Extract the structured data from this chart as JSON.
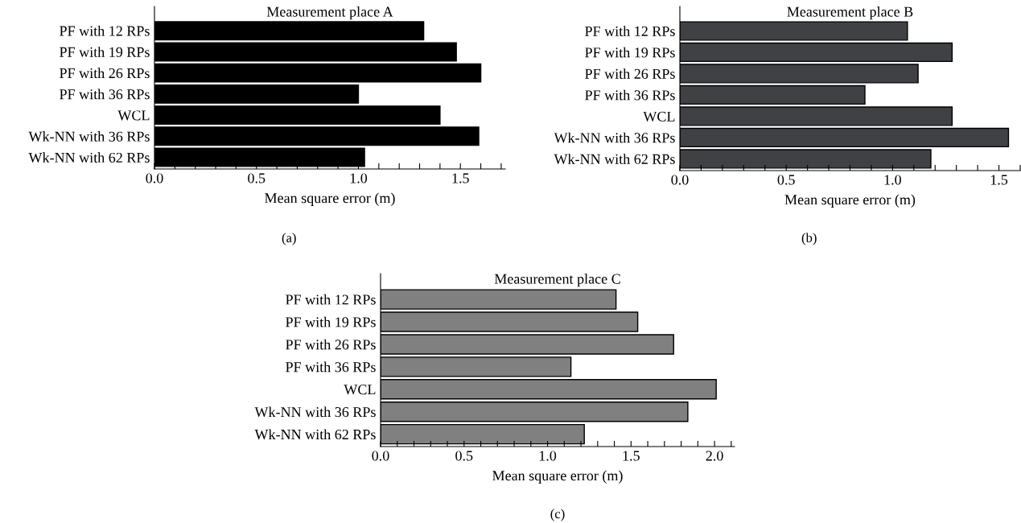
{
  "chart_data": [
    {
      "type": "bar",
      "orientation": "horizontal",
      "title": "Measurement place A",
      "xlabel": "Mean square error (m)",
      "categories": [
        "PF with 12 RPs",
        "PF with 19 RPs",
        "PF with 26 RPs",
        "PF with 36 RPs",
        "WCL",
        "Wk-NN with 36 RPs",
        "Wk-NN with 62 RPs"
      ],
      "values": [
        1.32,
        1.48,
        1.6,
        1.0,
        1.4,
        1.59,
        1.03
      ],
      "color": "#000000",
      "xlim": [
        0,
        1.72
      ],
      "xticks": [
        {
          "value": 0,
          "label": "0.0"
        },
        {
          "value": 0.1,
          "label": null
        },
        {
          "value": 0.2,
          "label": null
        },
        {
          "value": 0.3,
          "label": null
        },
        {
          "value": 0.4,
          "label": null
        },
        {
          "value": 0.5,
          "label": "0.5"
        },
        {
          "value": 0.6,
          "label": null
        },
        {
          "value": 0.7,
          "label": null
        },
        {
          "value": 0.8,
          "label": null
        },
        {
          "value": 0.9,
          "label": null
        },
        {
          "value": 1.0,
          "label": "1.0"
        },
        {
          "value": 1.1,
          "label": null
        },
        {
          "value": 1.2,
          "label": null
        },
        {
          "value": 1.3,
          "label": null
        },
        {
          "value": 1.4,
          "label": null
        },
        {
          "value": 1.5,
          "label": "1.5"
        },
        {
          "value": 1.6,
          "label": null
        },
        {
          "value": 1.7,
          "label": null
        }
      ],
      "grid": false,
      "annotations": [
        "(a)"
      ]
    },
    {
      "type": "bar",
      "orientation": "horizontal",
      "title": "Measurement place B",
      "xlabel": "Mean square error (m)",
      "categories": [
        "PF with 12 RPs",
        "PF with 19 RPs",
        "PF with 26 RPs",
        "PF with 36 RPs",
        "WCL",
        "Wk-NN with 36 RPs",
        "Wk-NN with 62 RPs"
      ],
      "values": [
        1.07,
        1.28,
        1.12,
        0.87,
        1.28,
        1.545,
        1.18
      ],
      "color": "#3f4144",
      "xlim": [
        0,
        1.6
      ],
      "xticks": [
        {
          "value": 0,
          "label": "0.0"
        },
        {
          "value": 0.1,
          "label": null
        },
        {
          "value": 0.2,
          "label": null
        },
        {
          "value": 0.3,
          "label": null
        },
        {
          "value": 0.4,
          "label": null
        },
        {
          "value": 0.5,
          "label": "0.5"
        },
        {
          "value": 0.6,
          "label": null
        },
        {
          "value": 0.7,
          "label": null
        },
        {
          "value": 0.8,
          "label": null
        },
        {
          "value": 0.9,
          "label": null
        },
        {
          "value": 1.0,
          "label": "1.0"
        },
        {
          "value": 1.1,
          "label": null
        },
        {
          "value": 1.2,
          "label": null
        },
        {
          "value": 1.3,
          "label": null
        },
        {
          "value": 1.4,
          "label": null
        },
        {
          "value": 1.5,
          "label": "1.5"
        },
        {
          "value": 1.6,
          "label": null
        }
      ],
      "grid": false,
      "annotations": [
        "(b)"
      ]
    },
    {
      "type": "bar",
      "orientation": "horizontal",
      "title": "Measurement place C",
      "xlabel": "Mean square error (m)",
      "categories": [
        "PF with 12 RPs",
        "PF with 19 RPs",
        "PF with 26 RPs",
        "PF with 36 RPs",
        "WCL",
        "Wk-NN with 36 RPs",
        "Wk-NN with 62 RPs"
      ],
      "values": [
        1.41,
        1.54,
        1.755,
        1.14,
        2.01,
        1.84,
        1.22
      ],
      "color": "#808080",
      "xlim": [
        0,
        2.12
      ],
      "xticks": [
        {
          "value": 0,
          "label": "0.0"
        },
        {
          "value": 0.1,
          "label": null
        },
        {
          "value": 0.2,
          "label": null
        },
        {
          "value": 0.3,
          "label": null
        },
        {
          "value": 0.4,
          "label": null
        },
        {
          "value": 0.5,
          "label": "0.5"
        },
        {
          "value": 0.6,
          "label": null
        },
        {
          "value": 0.7,
          "label": null
        },
        {
          "value": 0.8,
          "label": null
        },
        {
          "value": 0.9,
          "label": null
        },
        {
          "value": 1.0,
          "label": "1.0"
        },
        {
          "value": 1.1,
          "label": null
        },
        {
          "value": 1.2,
          "label": null
        },
        {
          "value": 1.3,
          "label": null
        },
        {
          "value": 1.4,
          "label": null
        },
        {
          "value": 1.5,
          "label": "1.5"
        },
        {
          "value": 1.6,
          "label": null
        },
        {
          "value": 1.7,
          "label": null
        },
        {
          "value": 1.8,
          "label": null
        },
        {
          "value": 1.9,
          "label": null
        },
        {
          "value": 2.0,
          "label": "2.0"
        },
        {
          "value": 2.1,
          "label": null
        }
      ],
      "grid": false,
      "annotations": [
        "(c)"
      ]
    }
  ]
}
